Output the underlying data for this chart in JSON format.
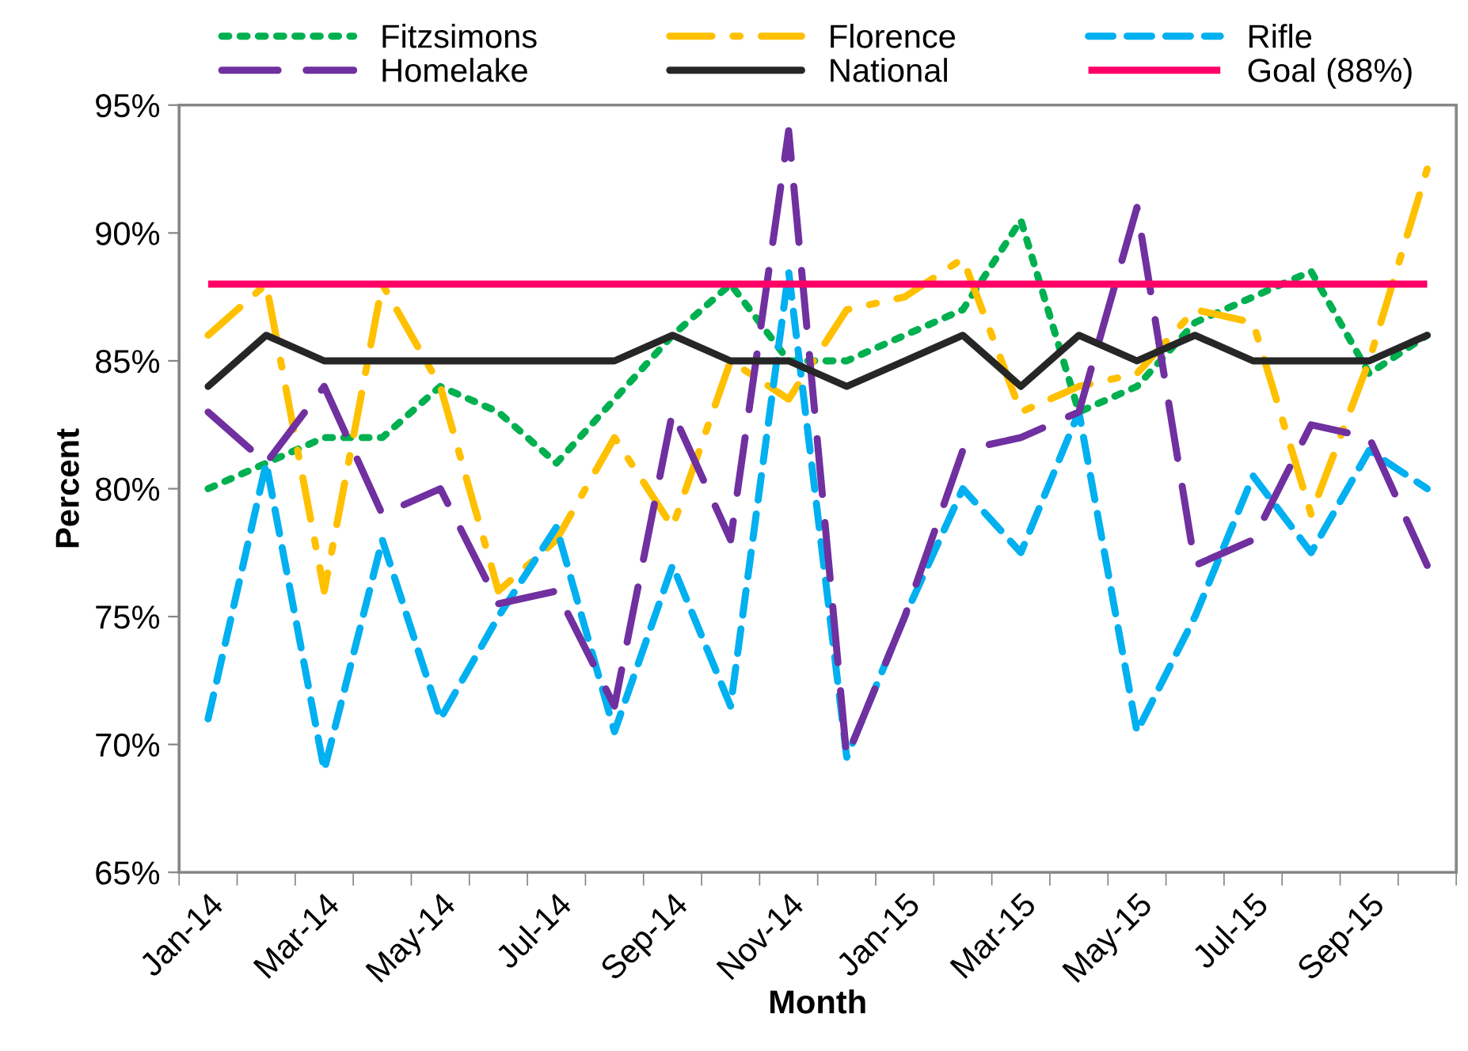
{
  "chart_data": {
    "type": "line",
    "xlabel": "Month",
    "ylabel": "Percent",
    "categories": [
      "Jan-14",
      null,
      "Mar-14",
      null,
      "May-14",
      null,
      "Jul-14",
      null,
      "Sep-14",
      null,
      "Nov-14",
      null,
      "Jan-15",
      null,
      "Mar-15",
      null,
      "May-15",
      null,
      "Jul-15",
      null,
      "Sep-15",
      null
    ],
    "series": [
      {
        "name": "Fitzsimons",
        "color": "#00b050",
        "line_style": "dotted",
        "values": [
          80,
          81,
          82,
          82,
          84,
          83,
          81,
          83.5,
          86,
          88,
          85,
          85,
          86,
          87,
          90.5,
          83,
          84,
          86.5,
          87.5,
          88.5,
          84.5,
          86
        ]
      },
      {
        "name": "Florence",
        "color": "#ffc000",
        "line_style": "dashdot",
        "values": [
          86,
          88,
          76,
          88,
          84,
          76,
          78,
          82,
          78.5,
          85,
          83.5,
          87,
          87.5,
          89,
          83,
          84,
          84.5,
          87,
          86.5,
          79,
          85,
          92.5
        ]
      },
      {
        "name": "Rifle",
        "color": "#00b0f0",
        "line_style": "dashed",
        "values": [
          71,
          81,
          69,
          78,
          71,
          75,
          78.5,
          70.5,
          77,
          71.5,
          88.5,
          69.5,
          75,
          80,
          77.5,
          83,
          70.5,
          75,
          80.5,
          77.5,
          81.5,
          80
        ]
      },
      {
        "name": "Homelake",
        "color": "#7030a0",
        "line_style": "longdash",
        "values": [
          83,
          81,
          84,
          79,
          80,
          75.5,
          76,
          71.5,
          83,
          78,
          94,
          69.5,
          75,
          81.5,
          82,
          83,
          91,
          77,
          78,
          82.5,
          82,
          77
        ]
      },
      {
        "name": "National",
        "color": "#262626",
        "line_style": "solid",
        "values": [
          84,
          86,
          85,
          85,
          85,
          85,
          85,
          85,
          86,
          85,
          85,
          84,
          85,
          86,
          84,
          86,
          85,
          86,
          85,
          85,
          85,
          86
        ]
      }
    ],
    "ref_lines": [
      {
        "axis": "y",
        "value": 88,
        "label": "Goal (88%)",
        "color": "#ff0066",
        "line_style": "solid"
      }
    ],
    "ylim": [
      65,
      95
    ],
    "yticks": [
      {
        "value": 65,
        "label": "65%"
      },
      {
        "value": 70,
        "label": "70%"
      },
      {
        "value": 75,
        "label": "75%"
      },
      {
        "value": 80,
        "label": "80%"
      },
      {
        "value": 85,
        "label": "85%"
      },
      {
        "value": 90,
        "label": "90%"
      },
      {
        "value": 95,
        "label": "95%"
      }
    ],
    "grid": false,
    "legend": "top",
    "marker": "none"
  }
}
